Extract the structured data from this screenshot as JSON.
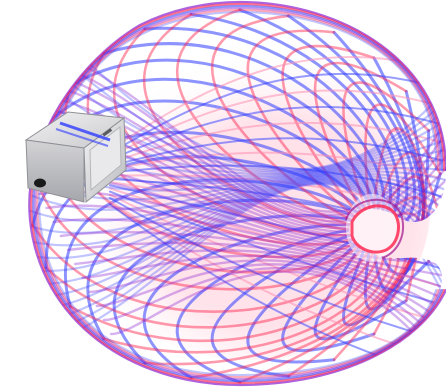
{
  "scene": {
    "subject": "toroidal-field-line-rendering",
    "background_color": "#ffffff",
    "colors": {
      "field_line_blue": "#2f3cff",
      "field_line_red": "#ff1f4a",
      "field_line_violet": "#8a1fd0",
      "inner_core_pink": "#ff8fb0",
      "device_body": "#d9d9dc",
      "device_edge": "#8f9096",
      "device_face": "#eeeeef",
      "device_port": "#1a1a1a"
    },
    "icons": [
      "sensor-box-icon"
    ]
  }
}
